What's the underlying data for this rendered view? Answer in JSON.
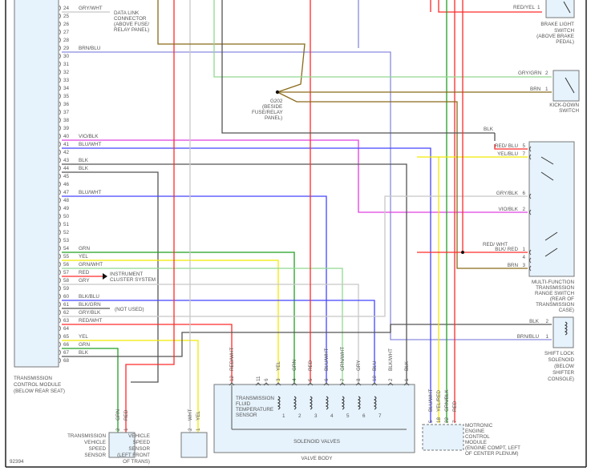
{
  "diagram_id": "92394",
  "colors": {
    "RED": "#ff2a2a",
    "BLU": "#4545ff",
    "BLU_LIGHT": "#8a8ae0",
    "GRN": "#22a022",
    "GRN_LIGHT": "#90d890",
    "YEL": "#f2ea00",
    "BLK": "#555555",
    "GRY": "#c8c8c8",
    "BRN": "#8a6a1a",
    "VIO": "#e040e0",
    "module_fill": "#e6f3fc"
  },
  "tcm": {
    "caption": [
      "TRANSMISSION",
      "CONTROL MODULE",
      "(BELOW REAR SEAT)"
    ],
    "pins": [
      {
        "pin": "24",
        "wire": "GRY/WHT"
      },
      {
        "pin": "25",
        "wire": ""
      },
      {
        "pin": "26",
        "wire": ""
      },
      {
        "pin": "27",
        "wire": ""
      },
      {
        "pin": "28",
        "wire": ""
      },
      {
        "pin": "29",
        "wire": "BRN/BLU"
      },
      {
        "pin": "30",
        "wire": ""
      },
      {
        "pin": "31",
        "wire": ""
      },
      {
        "pin": "32",
        "wire": ""
      },
      {
        "pin": "33",
        "wire": ""
      },
      {
        "pin": "34",
        "wire": ""
      },
      {
        "pin": "35",
        "wire": ""
      },
      {
        "pin": "36",
        "wire": ""
      },
      {
        "pin": "37",
        "wire": ""
      },
      {
        "pin": "38",
        "wire": ""
      },
      {
        "pin": "39",
        "wire": ""
      },
      {
        "pin": "40",
        "wire": "VIO/BLK"
      },
      {
        "pin": "41",
        "wire": "BLU/WHT"
      },
      {
        "pin": "42",
        "wire": ""
      },
      {
        "pin": "43",
        "wire": "BLK"
      },
      {
        "pin": "44",
        "wire": "BLK"
      },
      {
        "pin": "45",
        "wire": ""
      },
      {
        "pin": "46",
        "wire": ""
      },
      {
        "pin": "47",
        "wire": "BLU/WHT"
      },
      {
        "pin": "48",
        "wire": ""
      },
      {
        "pin": "49",
        "wire": ""
      },
      {
        "pin": "50",
        "wire": ""
      },
      {
        "pin": "51",
        "wire": ""
      },
      {
        "pin": "52",
        "wire": ""
      },
      {
        "pin": "53",
        "wire": ""
      },
      {
        "pin": "54",
        "wire": "GRN"
      },
      {
        "pin": "55",
        "wire": "YEL"
      },
      {
        "pin": "56",
        "wire": "GRN/WHT"
      },
      {
        "pin": "57",
        "wire": "RED"
      },
      {
        "pin": "58",
        "wire": "GRY"
      },
      {
        "pin": "59",
        "wire": ""
      },
      {
        "pin": "60",
        "wire": "BLK/BLU"
      },
      {
        "pin": "61",
        "wire": "BLK/GRN"
      },
      {
        "pin": "62",
        "wire": "GRY/BLK"
      },
      {
        "pin": "63",
        "wire": "RED/WHT"
      },
      {
        "pin": "64",
        "wire": ""
      },
      {
        "pin": "65",
        "wire": "YEL"
      },
      {
        "pin": "66",
        "wire": "GRN"
      },
      {
        "pin": "67",
        "wire": "BLK"
      },
      {
        "pin": "68",
        "wire": ""
      }
    ]
  },
  "annotations": {
    "data_link": [
      "DATA LINK",
      "CONNECTOR",
      "(ABOVE FUSE/",
      "RELAY PANEL)"
    ],
    "instrument_cluster": [
      "INSTRUMENT",
      "CLUSTER SYSTEM"
    ],
    "not_used": "(NOT USED)",
    "g202": [
      "G202",
      "(BESIDE",
      "FUSE/RELAY",
      "PANEL)"
    ]
  },
  "brake_light_switch": {
    "caption": [
      "BRAKE LIGHT",
      "SWITCH",
      "(ABOVE BRAKE",
      "PEDAL)"
    ],
    "pins": [
      {
        "pin": "1",
        "wire": "RED/YEL"
      }
    ]
  },
  "kick_down_switch": {
    "caption": [
      "KICK-DOWN",
      "SWITCH"
    ],
    "pins": [
      {
        "pin": "2",
        "wire": "GRY/GRN"
      },
      {
        "pin": "1",
        "wire": "BRN"
      }
    ]
  },
  "range_switch": {
    "caption": [
      "MULTI-FUNCTION",
      "TRANSMISSION",
      "RANGE SWITCH",
      "(REAR OF",
      "TRANSMISSION",
      "CASE)"
    ],
    "pins": [
      {
        "pin": "5",
        "wire": "RED/ BLU"
      },
      {
        "pin": "7",
        "wire": "YEL/BLU"
      },
      {
        "pin": "6",
        "wire": "GRY/BLK"
      },
      {
        "pin": "2",
        "wire": "VIO/BLK"
      },
      {
        "pin": "1",
        "wire": "BLK/ RED"
      },
      {
        "pin": "4",
        "wire": ""
      },
      {
        "pin": "3",
        "wire": "BRN"
      }
    ],
    "ground_wire": "BLK",
    "splice_wire": "RED/ WHT"
  },
  "shift_lock_solenoid": {
    "caption": [
      "SHIFT LOCK",
      "SOLENOID",
      "(BELOW",
      "SHIFTER",
      "CONSOLE)"
    ],
    "pins": [
      {
        "pin": "2",
        "wire": "BLK"
      },
      {
        "pin": "1",
        "wire": "BRN/BLU"
      }
    ]
  },
  "valve_body": {
    "caption": "VALVE BODY",
    "sensor": [
      "TRANSMISSION",
      "FLUID",
      "TEMPERATURE",
      "SENSOR"
    ],
    "solenoid_label": "SOLENOID VALVES",
    "solenoids": [
      "1",
      "2",
      "3",
      "4",
      "5",
      "6",
      "7"
    ],
    "pins": [
      {
        "pin": "12",
        "wire": "RED/WHT"
      },
      {
        "pin": "11",
        "wire": ""
      },
      {
        "pin": "6",
        "wire": ""
      },
      {
        "pin": "3",
        "wire": "YEL"
      },
      {
        "pin": "4",
        "wire": "GRN"
      },
      {
        "pin": "5",
        "wire": "RED"
      },
      {
        "pin": "6",
        "wire": "BLU/WHT"
      },
      {
        "pin": "7",
        "wire": "GRN/WHT"
      },
      {
        "pin": "8",
        "wire": "GRY"
      },
      {
        "pin": "10",
        "wire": "BLU"
      },
      {
        "pin": "2",
        "wire": "BLK/WHT"
      },
      {
        "pin": "1",
        "wire": "BLK"
      }
    ]
  },
  "ecm": {
    "caption": [
      "MOTRONIC",
      "ENGINE",
      "CONTROL",
      "MODULE",
      "(ENGINE COMPT, LEFT",
      "OF CENTER PLENUM)"
    ],
    "pins": [
      {
        "pin": "5",
        "wire": "BLU/WHT"
      },
      {
        "pin": "18",
        "wire": "YEL/RED"
      },
      {
        "pin": "22",
        "wire": "GRN/BLK"
      },
      {
        "pin": "7",
        "wire": "RED"
      }
    ]
  },
  "trans_vss": {
    "caption": [
      "TRANSMISSION",
      "VEHICLE",
      "SPEED",
      "SENSOR"
    ],
    "pins": [
      {
        "pin": "2",
        "wire": "GRN"
      },
      {
        "pin": "1",
        "wire": "RED"
      }
    ]
  },
  "vss": {
    "caption": [
      "VEHICLE",
      "SPEED",
      "SENSOR",
      "(LEFT FRONT",
      "OF TRANS)"
    ],
    "pins": [
      {
        "pin": "2",
        "wire": "WHT"
      },
      {
        "pin": "1",
        "wire": "YEL"
      }
    ]
  }
}
